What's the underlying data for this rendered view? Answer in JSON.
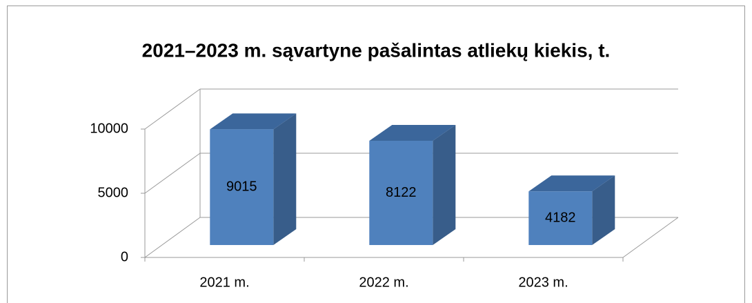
{
  "chart_data": {
    "type": "bar3d",
    "title": "2021–2023 m. sąvartyne pašalintas atliekų kiekis, t.",
    "categories": [
      "2021 m.",
      "2022 m.",
      "2023 m."
    ],
    "values": [
      9015,
      8122,
      4182
    ],
    "color": "#4f81bd",
    "ylim": [
      0,
      10000
    ],
    "yticks": [
      0,
      5000,
      10000
    ],
    "grid": true
  }
}
